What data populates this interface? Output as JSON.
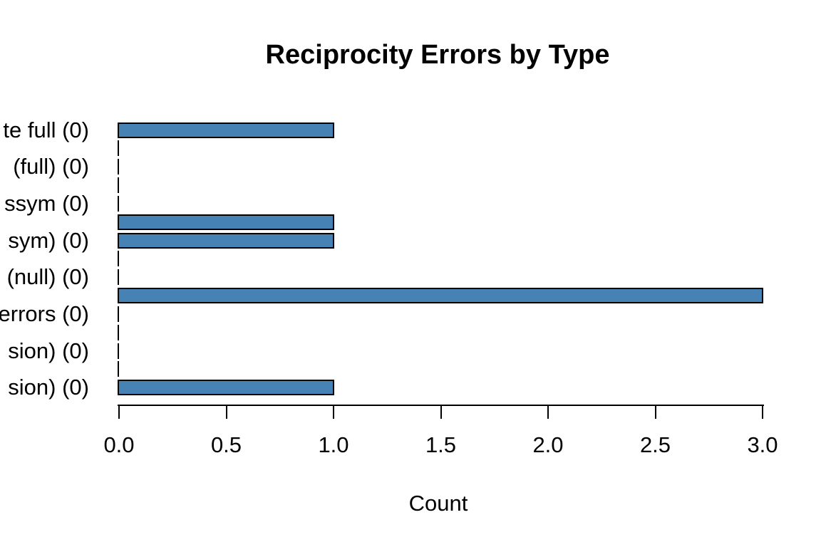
{
  "page": {
    "background": "#ffffff"
  },
  "chart_data": {
    "type": "bar",
    "orientation": "horizontal",
    "title": "Reciprocity Errors by Type",
    "xlabel": "Count",
    "ylabel": "",
    "xlim": [
      0,
      3
    ],
    "grid": false,
    "legend": false,
    "bar_fill": "#4682B4",
    "bar_border": "#000000",
    "labels_truncated_at_left_edge": true,
    "x_ticks": [
      {
        "label": "0.0",
        "value": 0.0
      },
      {
        "label": "0.5",
        "value": 0.5
      },
      {
        "label": "1.0",
        "value": 1.0
      },
      {
        "label": "1.5",
        "value": 1.5
      },
      {
        "label": "2.0",
        "value": 2.0
      },
      {
        "label": "2.5",
        "value": 2.5
      },
      {
        "label": "3.0",
        "value": 3.0
      }
    ],
    "bars_top_to_bottom": [
      {
        "label": "te full (0)",
        "value": 1
      },
      {
        "label": "",
        "value": 0
      },
      {
        "label": "(full) (0)",
        "value": 0
      },
      {
        "label": "",
        "value": 0
      },
      {
        "label": "ssym (0)",
        "value": 0
      },
      {
        "label": "",
        "value": 1
      },
      {
        "label": "sym) (0)",
        "value": 1
      },
      {
        "label": "",
        "value": 0
      },
      {
        "label": "(null) (0)",
        "value": 0
      },
      {
        "label": "",
        "value": 3
      },
      {
        "label": "errors (0)",
        "value": 0
      },
      {
        "label": "",
        "value": 0
      },
      {
        "label": "sion) (0)",
        "value": 0
      },
      {
        "label": "",
        "value": 0
      },
      {
        "label": "sion) (0)",
        "value": 1
      }
    ]
  }
}
